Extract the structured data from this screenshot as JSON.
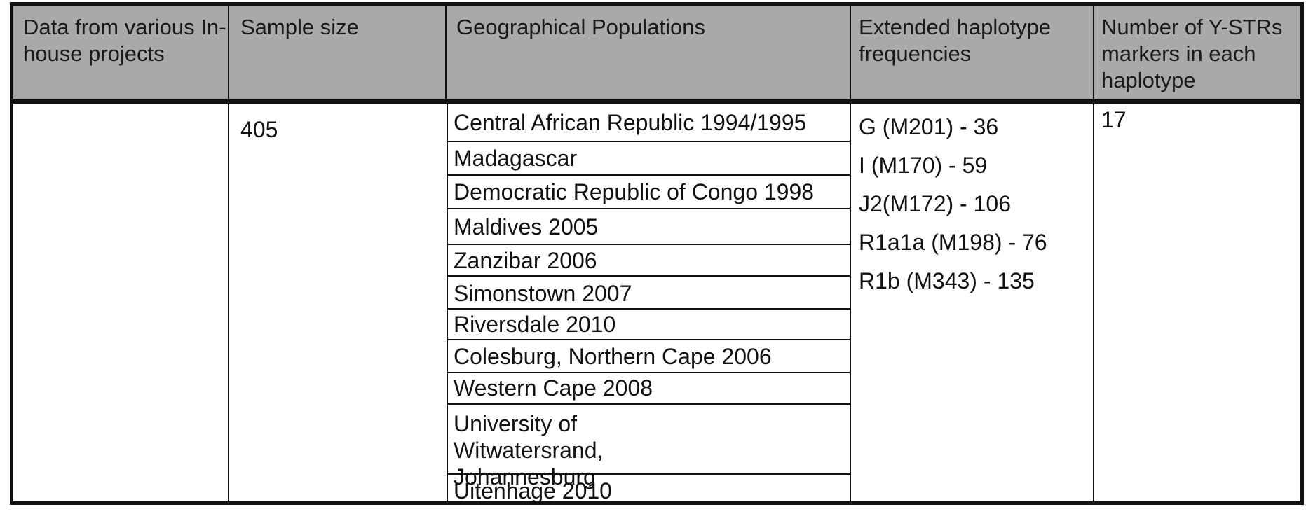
{
  "table": {
    "headers": [
      "Data from various In-house projects",
      "Sample size",
      "Geographical Populations",
      "Extended haplotype frequencies",
      "Number of Y-STRs markers in each haplotype"
    ],
    "row": {
      "project": "",
      "sample_size": "405",
      "populations": [
        "Central African Republic 1994/1995",
        "Madagascar",
        "Democratic Republic of Congo 1998",
        "Maldives 2005",
        "Zanzibar 2006",
        "Simonstown 2007",
        "Riversdale 2010",
        "Colesburg, Northern Cape 2006",
        "Western Cape 2008",
        "University of Witwatersrand, Johannesburg",
        "Uitenhage 2010"
      ],
      "haplotype_frequencies": [
        "G (M201) - 36",
        "I (M170) - 59",
        "J2(M172) - 106",
        "R1a1a (M198) - 76",
        "R1b (M343) - 135"
      ],
      "marker_count": "17"
    }
  }
}
